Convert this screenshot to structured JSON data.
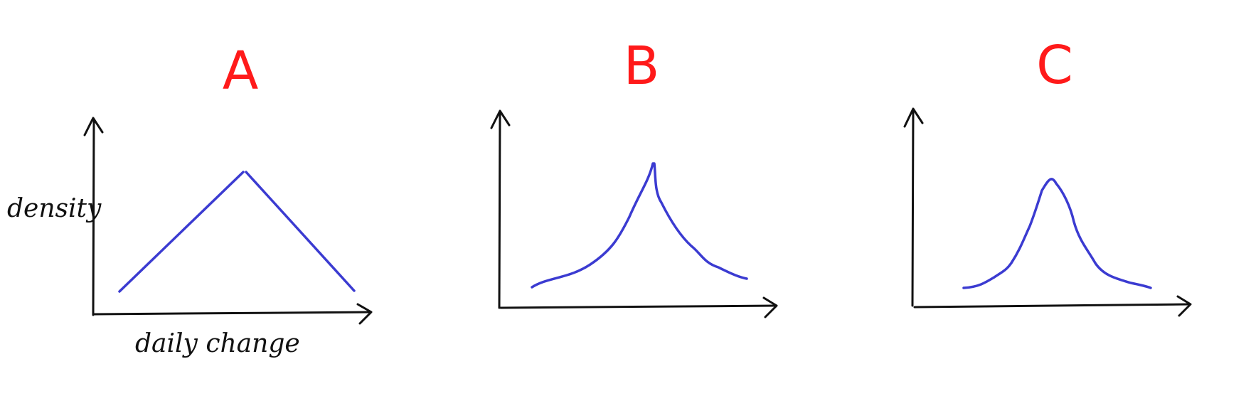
{
  "colors": {
    "letter": "#ff1a1a",
    "curve": "#3b3bd1",
    "axis": "#111111",
    "background": "#ffffff"
  },
  "panels": [
    {
      "id": "A",
      "letter": "A",
      "shape": "triangular (linear peak)"
    },
    {
      "id": "B",
      "letter": "B",
      "shape": "sharp-peaked (cusp) distribution"
    },
    {
      "id": "C",
      "letter": "C",
      "shape": "smooth bell-shaped distribution"
    }
  ],
  "labels": {
    "y_axis": "density",
    "x_axis": "daily change"
  }
}
